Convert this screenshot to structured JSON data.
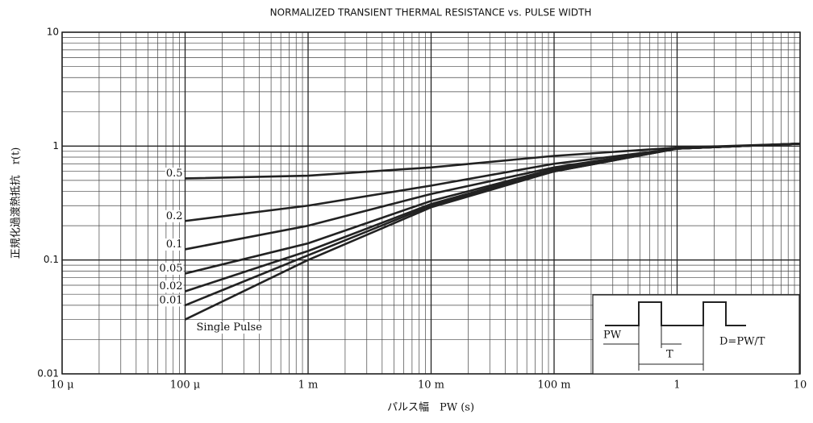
{
  "chart_data": {
    "type": "line",
    "title": "NORMALIZED TRANSIENT THERMAL RESISTANCE vs. PULSE WIDTH",
    "xlabel": "パルス幅　PW (s)",
    "ylabel": "正規化過渡熱抵抗　r(t)",
    "x": [
      0.0001,
      0.001,
      0.01,
      0.1,
      1,
      10
    ],
    "series": [
      {
        "name": "0.5",
        "color": "#222222",
        "values": [
          0.52,
          0.55,
          0.65,
          0.82,
          0.97,
          1.05
        ]
      },
      {
        "name": "0.2",
        "color": "#222222",
        "values": [
          0.22,
          0.3,
          0.45,
          0.7,
          0.95,
          1.05
        ]
      },
      {
        "name": "0.1",
        "color": "#222222",
        "values": [
          0.124,
          0.2,
          0.38,
          0.65,
          0.95,
          1.05
        ]
      },
      {
        "name": "0.05",
        "color": "#222222",
        "values": [
          0.076,
          0.14,
          0.33,
          0.63,
          0.95,
          1.05
        ]
      },
      {
        "name": "0.02",
        "color": "#222222",
        "values": [
          0.053,
          0.12,
          0.31,
          0.62,
          0.95,
          1.05
        ]
      },
      {
        "name": "0.01",
        "color": "#222222",
        "values": [
          0.04,
          0.11,
          0.3,
          0.6,
          0.95,
          1.05
        ]
      },
      {
        "name": "Single Pulse",
        "color": "#222222",
        "values": [
          0.03,
          0.1,
          0.29,
          0.6,
          0.95,
          1.05
        ]
      }
    ],
    "xlim": [
      1e-05,
      10
    ],
    "ylim": [
      0.01,
      10
    ],
    "xticks": [
      {
        "value": 1e-05,
        "label": "10 μ"
      },
      {
        "value": 0.0001,
        "label": "100 μ"
      },
      {
        "value": 0.001,
        "label": "1 m"
      },
      {
        "value": 0.01,
        "label": "10 m"
      },
      {
        "value": 0.1,
        "label": "100 m"
      },
      1,
      10
    ],
    "yticks": [
      0.01,
      0.1,
      1,
      10
    ],
    "xscale": "log",
    "yscale": "log",
    "grid": true,
    "minor_grid": true,
    "annotations": [
      "PW",
      "T",
      "D=PW/T"
    ]
  }
}
